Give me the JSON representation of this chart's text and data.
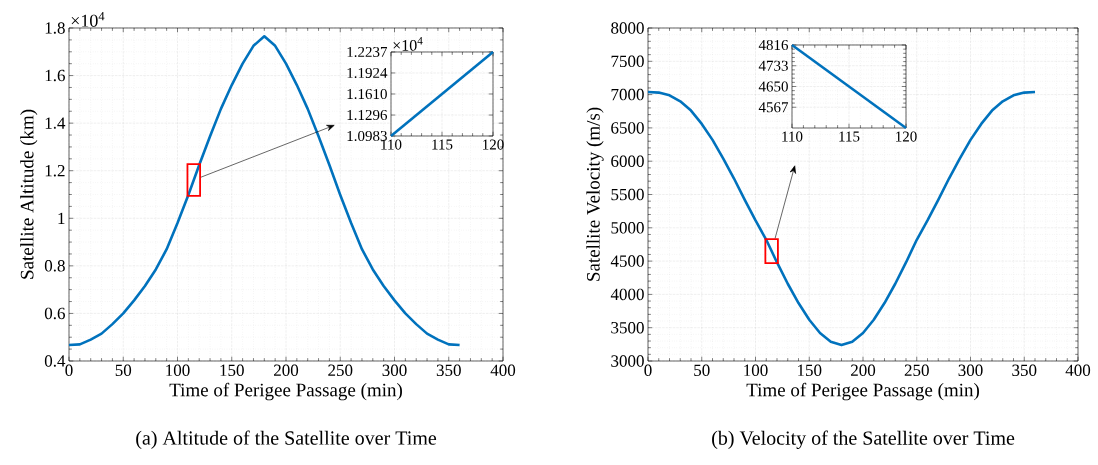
{
  "chart_data": [
    {
      "type": "line",
      "title": "(a) Altitude of the Satellite over Time",
      "xlabel": "Time of Perigee Passage (min)",
      "ylabel": "Satellite Altitude (km)",
      "annotations": [
        "×10$^{4}$"
      ],
      "x": [
        0,
        10,
        20,
        30,
        40,
        50,
        60,
        70,
        80,
        90,
        100,
        110,
        120,
        130,
        140,
        150,
        160,
        170,
        180,
        190,
        200,
        210,
        220,
        230,
        240,
        250,
        260,
        270,
        280,
        290,
        300,
        310,
        320,
        330,
        340,
        350,
        360
      ],
      "series": [
        {
          "color": "#0072bd",
          "values": [
            0.467,
            0.47,
            0.49,
            0.515,
            0.555,
            0.6,
            0.655,
            0.715,
            0.785,
            0.87,
            0.98,
            1.098,
            1.224,
            1.345,
            1.46,
            1.56,
            1.65,
            1.725,
            1.765,
            1.725,
            1.65,
            1.56,
            1.46,
            1.345,
            1.224,
            1.098,
            0.98,
            0.87,
            0.785,
            0.715,
            0.655,
            0.6,
            0.555,
            0.515,
            0.49,
            0.47,
            0.467
          ]
        }
      ],
      "xlim": [
        0,
        400
      ],
      "ylim": [
        0.4,
        1.8
      ],
      "xticks": [
        0,
        50,
        100,
        150,
        200,
        250,
        300,
        350,
        400
      ],
      "yticks": [
        0.4,
        0.6,
        0.8,
        1,
        1.2,
        1.4,
        1.6,
        1.8
      ],
      "grid": true
    },
    {
      "type": "line",
      "annotations": [
        "×10$^{4}$"
      ],
      "x": [
        110,
        120
      ],
      "series": [
        {
          "color": "#0072bd",
          "values": [
            1.0983,
            1.2237
          ]
        }
      ],
      "xlim": [
        110,
        120
      ],
      "ylim": [
        1.0983,
        1.2237
      ],
      "xticks": [
        110,
        115,
        120
      ],
      "yticks": [
        {
          "value": 1.0983,
          "label": "1.0983"
        },
        {
          "value": 1.1296,
          "label": "1.1296"
        },
        {
          "value": 1.161,
          "label": "1.1610"
        },
        {
          "value": 1.1924,
          "label": "1.1924"
        },
        {
          "value": 1.2237,
          "label": "1.2237"
        }
      ],
      "grid": true
    },
    {
      "type": "line",
      "title": "(b) Velocity of the Satellite over Time",
      "xlabel": "Time of Perigee Passage (min)",
      "ylabel": "Satellite Velocity (m/s)",
      "x": [
        0,
        10,
        20,
        30,
        40,
        50,
        60,
        70,
        80,
        90,
        100,
        110,
        120,
        130,
        140,
        150,
        160,
        170,
        180,
        190,
        200,
        210,
        220,
        230,
        240,
        250,
        260,
        270,
        280,
        290,
        300,
        310,
        320,
        330,
        340,
        350,
        360
      ],
      "series": [
        {
          "color": "#0072bd",
          "values": [
            7040,
            7030,
            6990,
            6900,
            6760,
            6560,
            6320,
            6040,
            5740,
            5420,
            5110,
            4820,
            4480,
            4160,
            3870,
            3620,
            3420,
            3290,
            3240,
            3290,
            3420,
            3620,
            3870,
            4160,
            4480,
            4820,
            5110,
            5420,
            5740,
            6040,
            6320,
            6560,
            6760,
            6900,
            6990,
            7030,
            7040
          ]
        }
      ],
      "xlim": [
        0,
        400
      ],
      "ylim": [
        3000,
        8000
      ],
      "xticks": [
        0,
        50,
        100,
        150,
        200,
        250,
        300,
        350,
        400
      ],
      "yticks": [
        3000,
        3500,
        4000,
        4500,
        5000,
        5500,
        6000,
        6500,
        7000,
        7500,
        8000
      ],
      "grid": true
    },
    {
      "type": "line",
      "x": [
        110,
        120
      ],
      "series": [
        {
          "color": "#0072bd",
          "values": [
            4816,
            4484
          ]
        }
      ],
      "xlim": [
        110,
        120
      ],
      "ylim": [
        4484,
        4816
      ],
      "xticks": [
        110,
        115,
        120
      ],
      "yticks": [
        4567,
        4650,
        4733,
        4816
      ],
      "grid": true
    }
  ]
}
